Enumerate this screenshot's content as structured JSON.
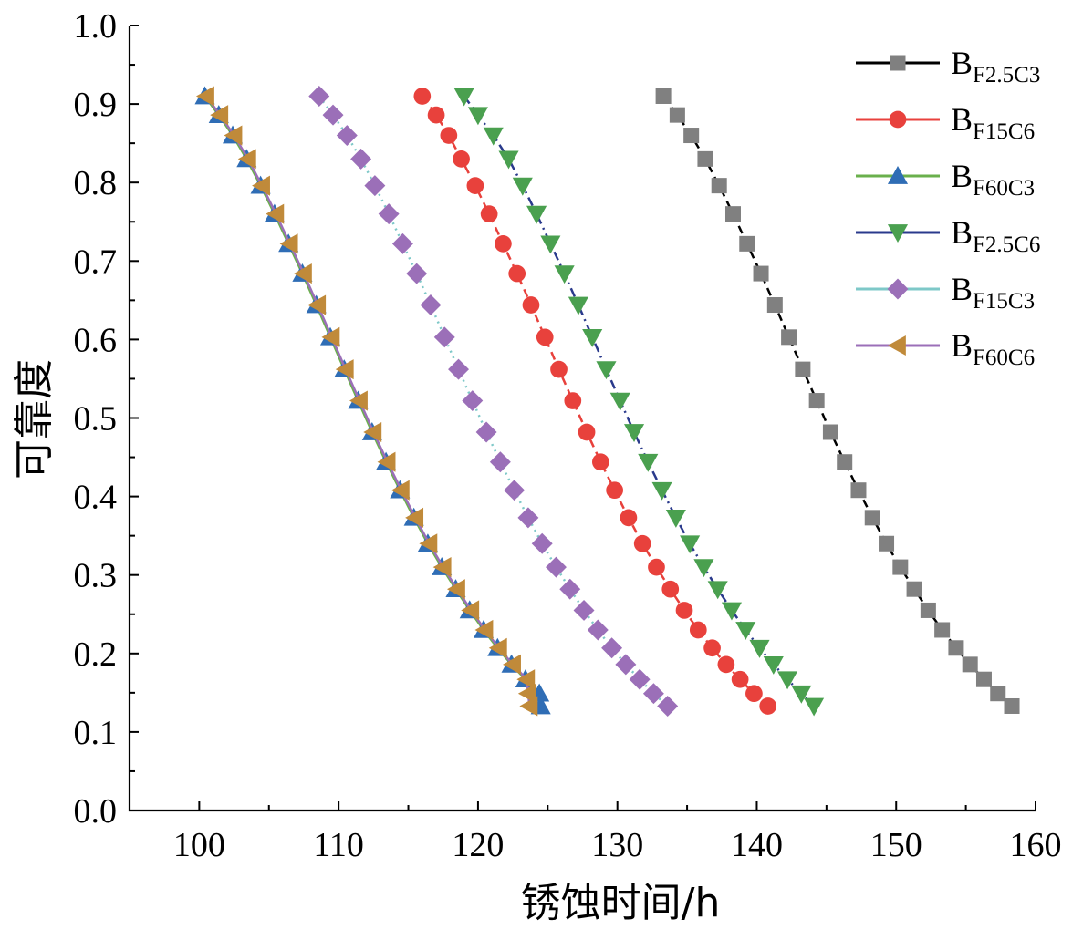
{
  "chart_data": {
    "type": "line",
    "title": "",
    "xlabel": "锈蚀时间/h",
    "ylabel": "可靠度",
    "xlim": [
      95,
      160
    ],
    "ylim": [
      0.0,
      1.0
    ],
    "xticks": [
      100,
      110,
      120,
      130,
      140,
      150,
      160
    ],
    "yticks": [
      0.0,
      0.1,
      0.2,
      0.3,
      0.4,
      0.5,
      0.6,
      0.7,
      0.8,
      0.9,
      1.0
    ],
    "xtick_labels": [
      "100",
      "110",
      "120",
      "130",
      "140",
      "150",
      "160"
    ],
    "ytick_labels": [
      "0.0",
      "0.1",
      "0.2",
      "0.3",
      "0.4",
      "0.5",
      "0.6",
      "0.7",
      "0.8",
      "0.9",
      "1.0"
    ],
    "grid": false,
    "legend_position": "top-right",
    "y": [
      0.91,
      0.886,
      0.86,
      0.83,
      0.796,
      0.76,
      0.722,
      0.684,
      0.644,
      0.603,
      0.562,
      0.522,
      0.482,
      0.444,
      0.408,
      0.373,
      0.34,
      0.31,
      0.282,
      0.255,
      0.23,
      0.207,
      0.186,
      0.167,
      0.149,
      0.133
    ],
    "series": [
      {
        "name": "BF2.5C3",
        "main": "B",
        "sub": "F2.5C3",
        "color": "#808080",
        "line_color": "#000000",
        "marker": "square",
        "dash": "dashed",
        "x": [
          133.3,
          134.3,
          135.3,
          136.3,
          137.3,
          138.3,
          139.3,
          140.3,
          141.3,
          142.3,
          143.3,
          144.3,
          145.3,
          146.3,
          147.3,
          148.3,
          149.3,
          150.3,
          151.3,
          152.3,
          153.3,
          154.3,
          155.3,
          156.3,
          157.3,
          158.3
        ]
      },
      {
        "name": "BF15C6",
        "main": "B",
        "sub": "F15C6",
        "color": "#e8413c",
        "line_color": "#e8413c",
        "marker": "circle",
        "dash": "dashed",
        "x": [
          116.0,
          117.0,
          117.9,
          118.8,
          119.8,
          120.8,
          121.8,
          122.8,
          123.8,
          124.8,
          125.8,
          126.8,
          127.8,
          128.8,
          129.8,
          130.8,
          131.8,
          132.8,
          133.8,
          134.8,
          135.8,
          136.8,
          137.8,
          138.8,
          139.8,
          140.8
        ]
      },
      {
        "name": "BF60C3",
        "main": "B",
        "sub": "F60C3",
        "color": "#2f6db5",
        "line_color": "#6ab04c",
        "marker": "triangle-up",
        "dash": "solid",
        "x": [
          100.4,
          101.4,
          102.4,
          103.4,
          104.4,
          105.4,
          106.4,
          107.4,
          108.4,
          109.4,
          110.4,
          111.4,
          112.4,
          113.4,
          114.4,
          115.4,
          116.4,
          117.4,
          118.4,
          119.4,
          120.4,
          121.4,
          122.4,
          123.4,
          124.4,
          124.5
        ]
      },
      {
        "name": "BF2.5C6",
        "main": "B",
        "sub": "F2.5C6",
        "color": "#4aa04f",
        "line_color": "#2a3a8c",
        "marker": "triangle-down",
        "dash": "dashdot",
        "x": [
          119.0,
          120.0,
          121.1,
          122.2,
          123.2,
          124.2,
          125.2,
          126.2,
          127.2,
          128.2,
          129.2,
          130.2,
          131.2,
          132.2,
          133.2,
          134.2,
          135.2,
          136.2,
          137.2,
          138.2,
          139.2,
          140.2,
          141.2,
          142.2,
          143.2,
          144.1
        ]
      },
      {
        "name": "BF15C3",
        "main": "B",
        "sub": "F15C3",
        "color": "#9b6fb8",
        "line_color": "#7ec8c8",
        "marker": "diamond",
        "dash": "dotted",
        "x": [
          108.6,
          109.6,
          110.6,
          111.6,
          112.6,
          113.6,
          114.6,
          115.6,
          116.6,
          117.6,
          118.6,
          119.6,
          120.6,
          121.6,
          122.6,
          123.6,
          124.6,
          125.6,
          126.6,
          127.6,
          128.6,
          129.6,
          130.6,
          131.6,
          132.6,
          133.6
        ]
      },
      {
        "name": "BF60C6",
        "main": "B",
        "sub": "F60C6",
        "color": "#c08a3a",
        "line_color": "#9b6fb8",
        "marker": "triangle-left",
        "dash": "solid",
        "x": [
          100.5,
          101.5,
          102.5,
          103.5,
          104.5,
          105.5,
          106.5,
          107.5,
          108.5,
          109.5,
          110.5,
          111.5,
          112.5,
          113.5,
          114.5,
          115.5,
          116.5,
          117.5,
          118.5,
          119.5,
          120.5,
          121.5,
          122.5,
          123.5,
          123.6,
          123.7
        ]
      }
    ]
  }
}
